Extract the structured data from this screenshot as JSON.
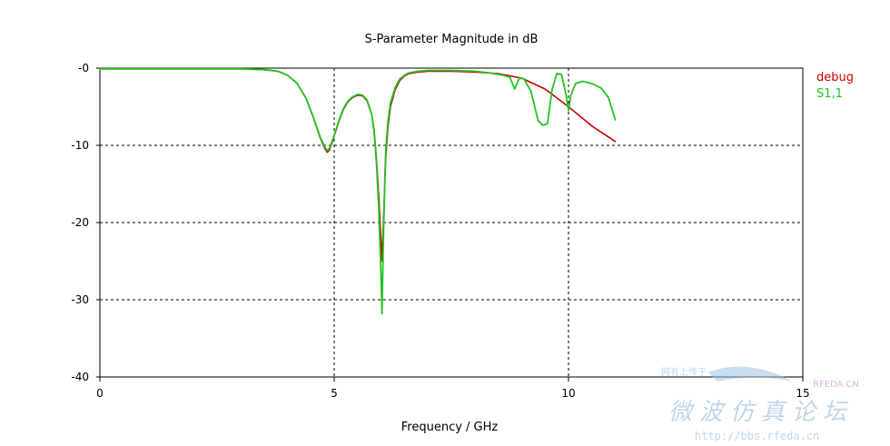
{
  "chart_data": {
    "type": "line",
    "title": "S-Parameter Magnitude in dB",
    "xlabel": "Frequency / GHz",
    "ylabel": "",
    "xlim": [
      0,
      15
    ],
    "ylim": [
      -40,
      0
    ],
    "xticks": [
      0,
      5,
      10,
      15
    ],
    "yticks": [
      0,
      -10,
      -20,
      -30,
      -40
    ],
    "xtick_labels": [
      "0",
      "5",
      "10",
      "15"
    ],
    "ytick_labels": [
      "-0",
      "-10",
      "-20",
      "-30",
      "-40"
    ],
    "grid": true,
    "legend_position": "right",
    "series": [
      {
        "name": "debug",
        "color": "#cc0000",
        "x": [
          0,
          0.5,
          1,
          1.5,
          2,
          2.5,
          3,
          3.5,
          3.8,
          4.0,
          4.2,
          4.4,
          4.55,
          4.7,
          4.8,
          4.85,
          4.9,
          5.0,
          5.1,
          5.2,
          5.3,
          5.4,
          5.5,
          5.6,
          5.7,
          5.8,
          5.85,
          5.9,
          5.95,
          6.0,
          6.02,
          6.05,
          6.08,
          6.1,
          6.15,
          6.2,
          6.3,
          6.4,
          6.5,
          6.6,
          6.8,
          7.0,
          7.5,
          8.0,
          8.5,
          9.0,
          9.5,
          10.0,
          10.5,
          11.0
        ],
        "y": [
          -0.1,
          -0.1,
          -0.1,
          -0.1,
          -0.1,
          -0.1,
          -0.1,
          -0.2,
          -0.4,
          -0.9,
          -1.9,
          -3.9,
          -6.3,
          -9.0,
          -10.4,
          -10.9,
          -10.6,
          -8.8,
          -6.9,
          -5.3,
          -4.3,
          -3.8,
          -3.5,
          -3.6,
          -4.2,
          -6.0,
          -8.0,
          -11.5,
          -16.5,
          -22.5,
          -25.0,
          -20.0,
          -15.0,
          -11.5,
          -7.5,
          -5.0,
          -2.8,
          -1.6,
          -1.0,
          -0.7,
          -0.5,
          -0.4,
          -0.4,
          -0.5,
          -0.7,
          -1.3,
          -2.7,
          -5.0,
          -7.5,
          -9.5
        ]
      },
      {
        "name": "S1,1",
        "color": "#22c422",
        "x": [
          0,
          0.5,
          1,
          1.5,
          2,
          2.5,
          3,
          3.5,
          3.8,
          4.0,
          4.2,
          4.4,
          4.55,
          4.7,
          4.8,
          4.85,
          4.9,
          5.0,
          5.1,
          5.2,
          5.3,
          5.4,
          5.5,
          5.6,
          5.7,
          5.8,
          5.85,
          5.9,
          5.95,
          6.0,
          6.02,
          6.05,
          6.08,
          6.1,
          6.15,
          6.2,
          6.3,
          6.4,
          6.5,
          6.6,
          6.8,
          7.0,
          7.5,
          8.0,
          8.3,
          8.6,
          8.75,
          8.85,
          8.95,
          9.05,
          9.2,
          9.35,
          9.45,
          9.55,
          9.65,
          9.75,
          9.85,
          9.95,
          10.0,
          10.05,
          10.15,
          10.3,
          10.5,
          10.7,
          10.85,
          11.0
        ],
        "y": [
          -0.1,
          -0.1,
          -0.1,
          -0.1,
          -0.1,
          -0.1,
          -0.1,
          -0.2,
          -0.4,
          -0.9,
          -1.9,
          -3.9,
          -6.3,
          -8.9,
          -10.2,
          -10.7,
          -10.4,
          -8.7,
          -6.8,
          -5.2,
          -4.2,
          -3.7,
          -3.4,
          -3.5,
          -4.1,
          -6.0,
          -8.2,
          -12.0,
          -18.0,
          -27.0,
          -31.8,
          -22.0,
          -14.5,
          -10.5,
          -6.8,
          -4.5,
          -2.5,
          -1.4,
          -0.9,
          -0.6,
          -0.4,
          -0.3,
          -0.3,
          -0.4,
          -0.6,
          -0.9,
          -1.2,
          -2.7,
          -1.3,
          -1.4,
          -3.0,
          -6.8,
          -7.4,
          -7.2,
          -2.8,
          -0.7,
          -0.8,
          -3.5,
          -5.5,
          -3.5,
          -2.0,
          -1.7,
          -2.0,
          -2.6,
          -3.8,
          -6.7
        ]
      }
    ]
  },
  "watermark": {
    "small_text": "网有上传于",
    "brand": "RFEDA.CN",
    "big_text": "微波仿真论坛",
    "url": "http://bbs.rfeda.cn"
  }
}
